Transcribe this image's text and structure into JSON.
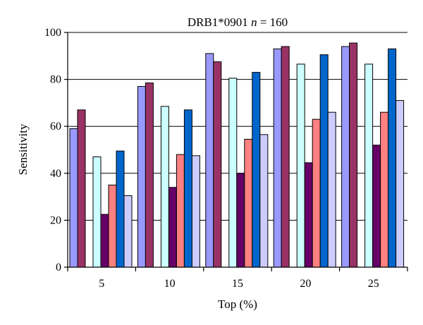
{
  "chart_data": {
    "type": "bar",
    "title": {
      "prefix": "DRB1*0901 ",
      "variable": "n",
      "suffix": " = 160"
    },
    "xlabel": "Top (%)",
    "ylabel": "Sensitivity",
    "categories": [
      "5",
      "10",
      "15",
      "20",
      "25"
    ],
    "ylim": [
      0,
      100
    ],
    "yticks": [
      0,
      20,
      40,
      60,
      80,
      100
    ],
    "grid": true,
    "legend": "none",
    "series": [
      {
        "color": "#9999ff",
        "values": [
          59,
          77,
          91,
          93,
          94
        ]
      },
      {
        "color": "#993366",
        "values": [
          67,
          78.5,
          87.5,
          94,
          95.5
        ]
      },
      {
        "color": "#ffffff",
        "values": [
          null,
          null,
          null,
          null,
          null
        ]
      },
      {
        "color": "#ccffff",
        "values": [
          47,
          68.5,
          80.5,
          86.5,
          86.5
        ]
      },
      {
        "color": "#660066",
        "values": [
          22.5,
          34,
          40,
          44.5,
          52
        ]
      },
      {
        "color": "#ff8080",
        "values": [
          35,
          48,
          54.5,
          63,
          66
        ]
      },
      {
        "color": "#0066cc",
        "values": [
          49.5,
          67,
          83,
          90.5,
          93
        ]
      },
      {
        "color": "#ccccff",
        "values": [
          30.5,
          47.5,
          56.5,
          66,
          71
        ]
      }
    ]
  }
}
